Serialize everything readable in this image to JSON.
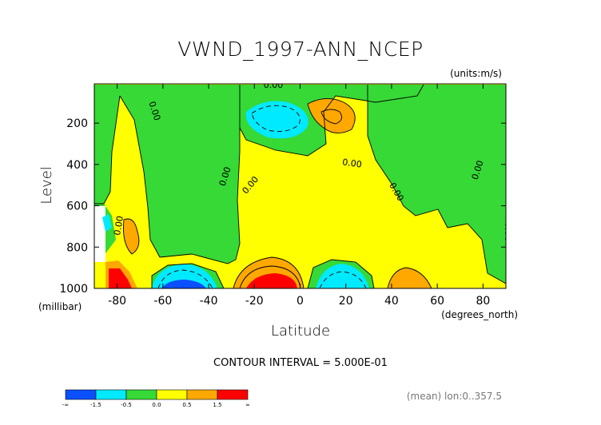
{
  "chart_data": {
    "type": "contour",
    "title": "VWND_1997-ANN_NCEP",
    "units_label": "(units:m/s)",
    "xlabel": "Latitude",
    "x_units": "(degrees_north)",
    "ylabel": "Level",
    "y_units": "(millibar)",
    "xlim": [
      -90,
      90
    ],
    "ylim": [
      1000,
      10
    ],
    "x_ticks": [
      -80,
      -60,
      -40,
      -20,
      0,
      20,
      40,
      60,
      80
    ],
    "x_tick_labels": [
      "-80",
      "-60",
      "-40",
      "-20",
      "0",
      "20",
      "40",
      "60",
      "80"
    ],
    "y_ticks": [
      200,
      400,
      600,
      800,
      1000
    ],
    "y_tick_labels": [
      "200",
      "400",
      "600",
      "800",
      "1000"
    ],
    "contour_interval_text": "CONTOUR INTERVAL = 5.000E-01",
    "contour_labels": [
      "0.00",
      "0.00",
      "0.00",
      "0.00",
      "0.00",
      "0.00",
      "0.00",
      "0.00",
      "0.00"
    ],
    "features": [
      {
        "lat": -13,
        "level": 990,
        "value": 1.7
      },
      {
        "lat": -80,
        "level": 970,
        "value": 1.9
      },
      {
        "lat": 18,
        "level": 170,
        "value": 0.8
      },
      {
        "lat": -74,
        "level": 760,
        "value": 0.6
      },
      {
        "lat": 47,
        "level": 990,
        "value": 0.6
      },
      {
        "lat": -52,
        "level": 990,
        "value": -1.6
      },
      {
        "lat": 18,
        "level": 990,
        "value": -1.1
      },
      {
        "lat": 0,
        "level": 170,
        "value": -0.9
      }
    ],
    "colorbar": {
      "boundaries": [
        "-∞",
        "-1.5",
        "-0.5",
        "0.0",
        "0.5",
        "1.5",
        "∞"
      ],
      "colors": [
        "#0a50ff",
        "#00eaff",
        "#36d936",
        "#ffff00",
        "#ffa800",
        "#ff0000"
      ]
    },
    "footnote": "(mean) lon:0..357.5"
  }
}
